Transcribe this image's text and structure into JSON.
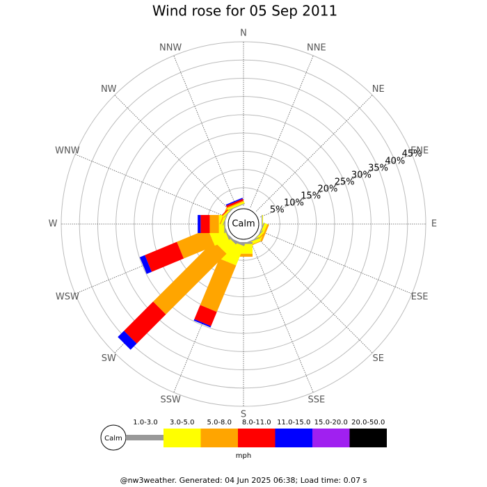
{
  "chart_data": {
    "type": "windrose",
    "title": "Wind rose for 05 Sep 2011",
    "categories": [
      "N",
      "NNE",
      "NE",
      "ENE",
      "E",
      "ESE",
      "SE",
      "SSE",
      "S",
      "SSW",
      "SW",
      "WSW",
      "W",
      "WNW",
      "NW",
      "NNW"
    ],
    "series": [
      {
        "name": "1.0-3.0",
        "color": "#999999",
        "values": [
          0,
          0,
          0,
          0,
          0.2,
          0.3,
          0.2,
          0.3,
          0.5,
          0.6,
          0.5,
          0.4,
          0.3,
          0.2,
          0.2,
          0.2
        ]
      },
      {
        "name": "3.0-5.0",
        "color": "#ffff00",
        "values": [
          0,
          0,
          0,
          0,
          0.2,
          0.8,
          0.5,
          0.8,
          2.7,
          5.7,
          3.6,
          4.2,
          1.5,
          0.6,
          0.4,
          0.5
        ]
      },
      {
        "name": "5.0-8.0",
        "color": "#ffa500",
        "values": [
          0,
          0,
          0,
          0,
          0,
          0.5,
          0.3,
          0.2,
          0.8,
          13.8,
          23.5,
          9.2,
          2.5,
          0.3,
          0.2,
          0.3
        ]
      },
      {
        "name": "8.0-11.0",
        "color": "#ff0000",
        "values": [
          0,
          0,
          0,
          0,
          0,
          0,
          0,
          0,
          0,
          4.2,
          11.3,
          9.5,
          2.5,
          0,
          0.2,
          0.5
        ]
      },
      {
        "name": "11.0-15.0",
        "color": "#0000ff",
        "values": [
          0,
          0,
          0,
          0,
          0,
          0,
          0,
          0,
          0,
          0.4,
          2.4,
          1.5,
          0.8,
          0,
          0,
          0.3
        ]
      },
      {
        "name": "15.0-20.0",
        "color": "#a020f0",
        "values": [
          0,
          0,
          0,
          0,
          0,
          0,
          0,
          0,
          0,
          0,
          0,
          0,
          0,
          0,
          0,
          0
        ]
      },
      {
        "name": "20.0-50.0",
        "color": "#000000",
        "values": [
          0,
          0,
          0,
          0,
          0,
          0,
          0,
          0,
          0,
          0,
          0,
          0,
          0,
          0,
          0,
          0
        ]
      }
    ],
    "rlim": [
      0,
      45
    ],
    "rticks": [
      {
        "value": 5,
        "label": "5%"
      },
      {
        "value": 10,
        "label": "10%"
      },
      {
        "value": 15,
        "label": "15%"
      },
      {
        "value": 20,
        "label": "20%"
      },
      {
        "value": 25,
        "label": "25%"
      },
      {
        "value": 30,
        "label": "30%"
      },
      {
        "value": 35,
        "label": "35%"
      },
      {
        "value": 40,
        "label": "40%"
      },
      {
        "value": 45,
        "label": "45%"
      }
    ],
    "calm_label": "Calm",
    "unit": "mph",
    "footer": "@nw3weather. Generated: 04 Jun 2025 06:38; Load time: 0.07 s"
  }
}
